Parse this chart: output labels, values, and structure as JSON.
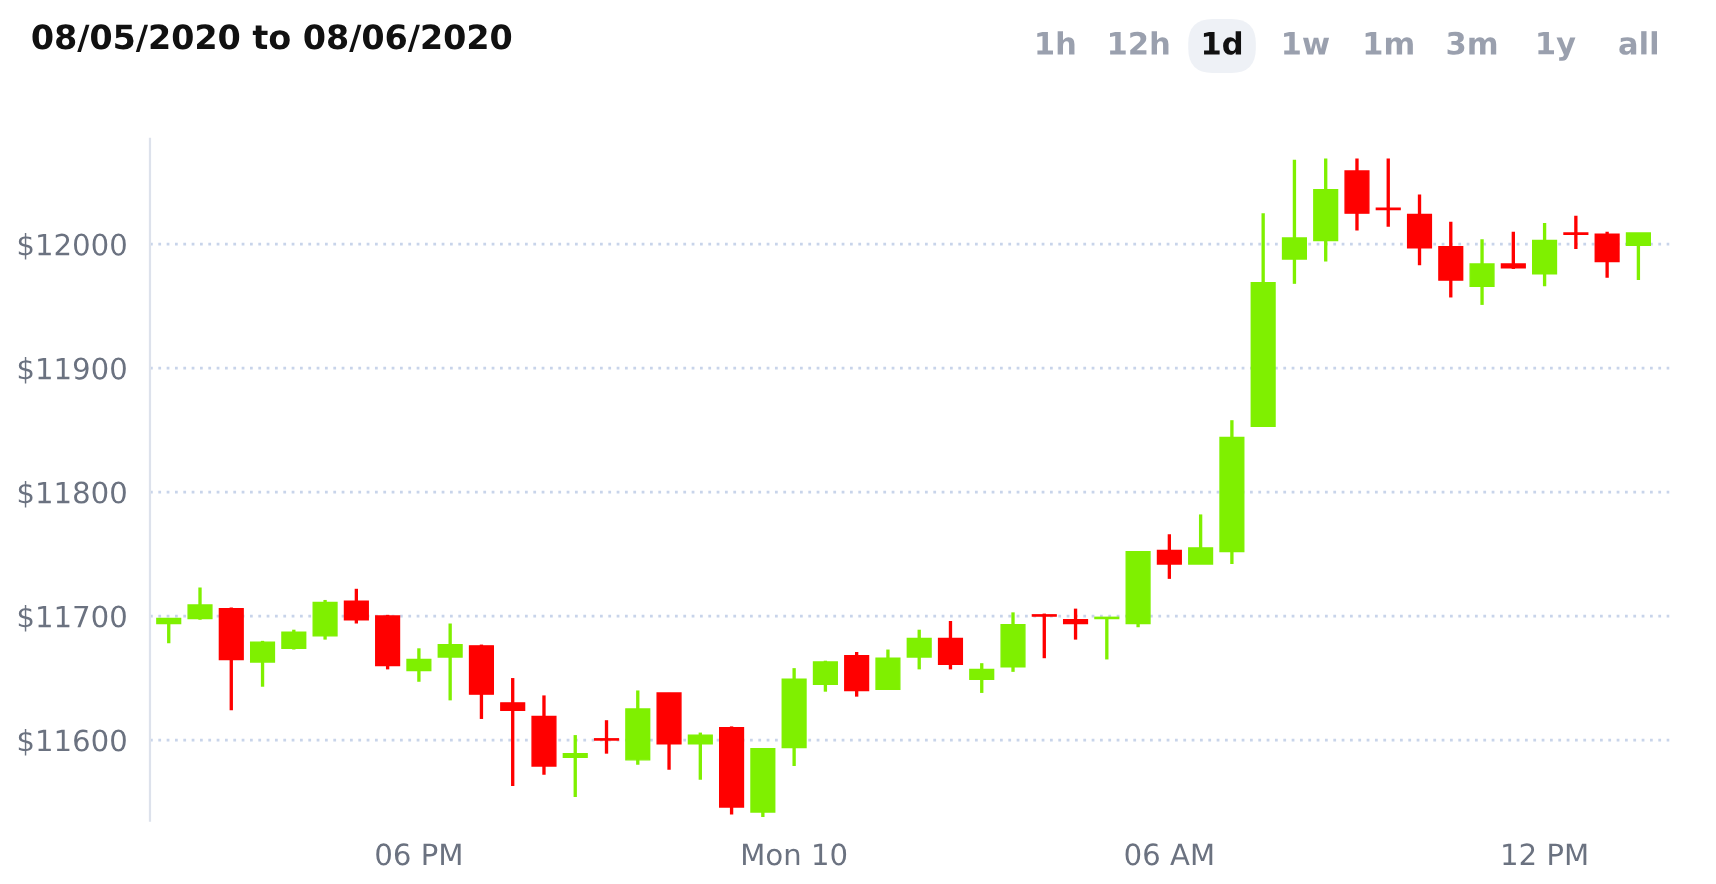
{
  "chart_data": {
    "type": "candlestick",
    "title": "08/05/2020 to 08/06/2020",
    "annotations": [
      "1h",
      "12h",
      "1d",
      "1w",
      "1m",
      "3m",
      "1y",
      "all"
    ],
    "x": [
      "2020-08-09T14:00",
      "2020-08-09T14:30",
      "2020-08-09T15:00",
      "2020-08-09T15:30",
      "2020-08-09T16:00",
      "2020-08-09T16:30",
      "2020-08-09T17:00",
      "2020-08-09T17:30",
      "2020-08-09T18:00",
      "2020-08-09T18:30",
      "2020-08-09T19:00",
      "2020-08-09T19:30",
      "2020-08-09T20:00",
      "2020-08-09T20:30",
      "2020-08-09T21:00",
      "2020-08-09T21:30",
      "2020-08-09T22:00",
      "2020-08-09T22:30",
      "2020-08-09T23:00",
      "2020-08-09T23:30",
      "2020-08-10T00:00",
      "2020-08-10T00:30",
      "2020-08-10T01:00",
      "2020-08-10T01:30",
      "2020-08-10T02:00",
      "2020-08-10T02:30",
      "2020-08-10T03:00",
      "2020-08-10T03:30",
      "2020-08-10T04:00",
      "2020-08-10T04:30",
      "2020-08-10T05:00",
      "2020-08-10T05:30",
      "2020-08-10T06:00",
      "2020-08-10T06:30",
      "2020-08-10T07:00",
      "2020-08-10T07:30",
      "2020-08-10T08:00",
      "2020-08-10T08:30",
      "2020-08-10T09:00",
      "2020-08-10T09:30",
      "2020-08-10T10:00",
      "2020-08-10T10:30",
      "2020-08-10T11:00",
      "2020-08-10T11:30",
      "2020-08-10T12:00",
      "2020-08-10T12:30",
      "2020-08-10T13:00",
      "2020-08-10T13:30"
    ],
    "ohlc": [
      [
        11694,
        11698,
        11678,
        11698
      ],
      [
        11698,
        11723,
        11697,
        11709
      ],
      [
        11706,
        11707,
        11624,
        11665
      ],
      [
        11663,
        11680,
        11643,
        11679
      ],
      [
        11674,
        11689,
        11673,
        11687
      ],
      [
        11684,
        11713,
        11681,
        11711
      ],
      [
        11712,
        11722,
        11694,
        11697
      ],
      [
        11700,
        11701,
        11657,
        11660
      ],
      [
        11656,
        11674,
        11647,
        11665
      ],
      [
        11667,
        11694,
        11632,
        11677
      ],
      [
        11676,
        11677,
        11617,
        11637
      ],
      [
        11630,
        11650,
        11563,
        11624
      ],
      [
        11619,
        11636,
        11572,
        11579
      ],
      [
        11586,
        11604,
        11554,
        11589
      ],
      [
        11601,
        11616,
        11589,
        11600
      ],
      [
        11584,
        11640,
        11580,
        11625
      ],
      [
        11638,
        11638,
        11576,
        11597
      ],
      [
        11597,
        11606,
        11568,
        11604
      ],
      [
        11610,
        11611,
        11540,
        11546
      ],
      [
        11542,
        11593,
        11538,
        11593
      ],
      [
        11594,
        11658,
        11579,
        11649
      ],
      [
        11645,
        11664,
        11639,
        11663
      ],
      [
        11668,
        11671,
        11635,
        11640
      ],
      [
        11641,
        11673,
        11641,
        11666
      ],
      [
        11667,
        11689,
        11657,
        11682
      ],
      [
        11682,
        11696,
        11657,
        11661
      ],
      [
        11649,
        11662,
        11638,
        11657
      ],
      [
        11659,
        11703,
        11655,
        11693
      ],
      [
        11701,
        11702,
        11666,
        11700
      ],
      [
        11697,
        11706,
        11681,
        11694
      ],
      [
        11698,
        11699,
        11665,
        11699
      ],
      [
        11694,
        11752,
        11691,
        11752
      ],
      [
        11753,
        11766,
        11730,
        11742
      ],
      [
        11742,
        11782,
        11742,
        11755
      ],
      [
        11752,
        11858,
        11742,
        11844
      ],
      [
        11853,
        12025,
        11853,
        11969
      ],
      [
        11988,
        12068,
        11968,
        12005
      ],
      [
        12003,
        12069,
        11986,
        12044
      ],
      [
        12059,
        12069,
        12011,
        12025
      ],
      [
        12029,
        12069,
        12014,
        12028
      ],
      [
        12024,
        12040,
        11983,
        11997
      ],
      [
        11998,
        12018,
        11957,
        11971
      ],
      [
        11966,
        12004,
        11951,
        11984
      ],
      [
        11984,
        12010,
        11980,
        11981
      ],
      [
        11976,
        12017,
        11966,
        12003
      ],
      [
        12009,
        12023,
        11996,
        12008
      ],
      [
        12008,
        12010,
        11973,
        11986
      ],
      [
        11999,
        12009,
        11971,
        12009
      ]
    ],
    "colors": [
      "#7ff000",
      "#7ff000",
      "#ff0000",
      "#7ff000",
      "#7ff000",
      "#7ff000",
      "#ff0000",
      "#ff0000",
      "#7ff000",
      "#7ff000",
      "#ff0000",
      "#ff0000",
      "#ff0000",
      "#7ff000",
      "#ff0000",
      "#7ff000",
      "#ff0000",
      "#7ff000",
      "#ff0000",
      "#7ff000",
      "#7ff000",
      "#7ff000",
      "#ff0000",
      "#7ff000",
      "#7ff000",
      "#ff0000",
      "#7ff000",
      "#7ff000",
      "#ff0000",
      "#ff0000",
      "#7ff000",
      "#7ff000",
      "#ff0000",
      "#7ff000",
      "#7ff000",
      "#7ff000",
      "#7ff000",
      "#7ff000",
      "#ff0000",
      "#ff0000",
      "#ff0000",
      "#ff0000",
      "#7ff000",
      "#ff0000",
      "#7ff000",
      "#ff0000",
      "#ff0000",
      "#7ff000"
    ],
    "xlim": [
      "2020-08-09T13:42",
      "2020-08-10T14:00"
    ],
    "xticks": [
      {
        "value": "2020-08-09T18:00",
        "label": "06 PM"
      },
      {
        "value": "2020-08-10T00:00",
        "label": "Mon 10"
      },
      {
        "value": "2020-08-10T06:00",
        "label": "06 AM"
      },
      {
        "value": "2020-08-10T12:00",
        "label": "12 PM"
      }
    ],
    "ylim": [
      11535,
      12085
    ],
    "yticks": [
      {
        "value": 11600,
        "label": "$11600"
      },
      {
        "value": 11700,
        "label": "$11700"
      },
      {
        "value": 11800,
        "label": "$11800"
      },
      {
        "value": 11900,
        "label": "$11900"
      },
      {
        "value": 12000,
        "label": "$12000"
      }
    ],
    "grid": "y"
  }
}
